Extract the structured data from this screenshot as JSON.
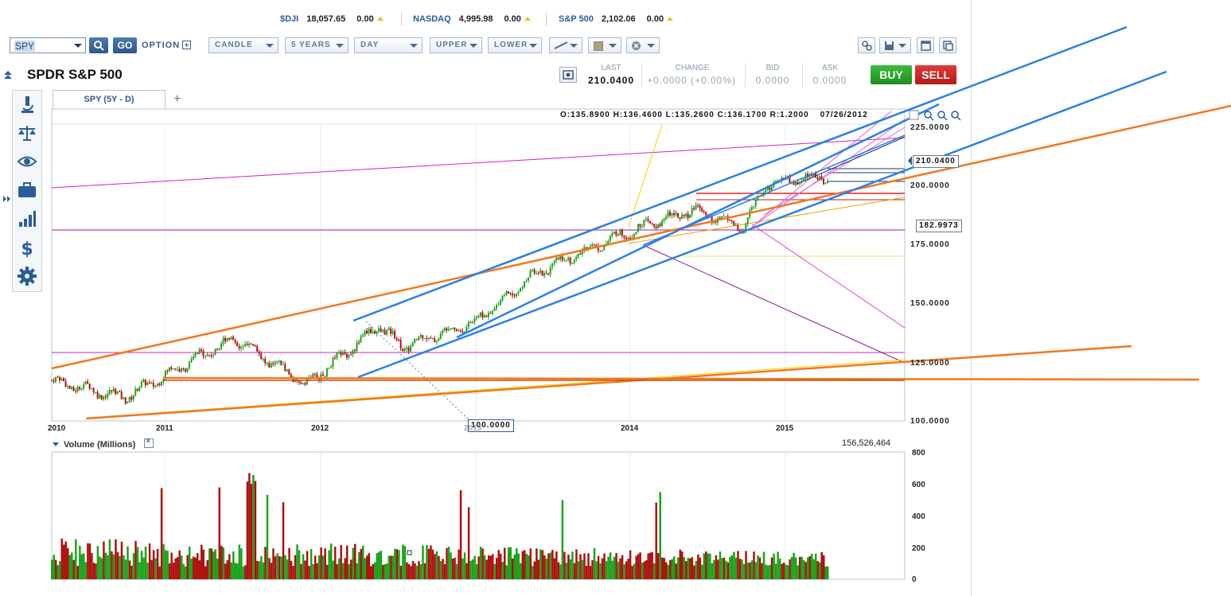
{
  "tickers": [
    {
      "symbol": "$DJI",
      "value": "18,057.65",
      "change": "0.00"
    },
    {
      "symbol": "NASDAQ",
      "value": "4,995.98",
      "change": "0.00"
    },
    {
      "symbol": "S&P 500",
      "value": "2,102.06",
      "change": "0.00"
    }
  ],
  "toolbar": {
    "symbol_value": "SPY",
    "go_label": "GO",
    "option_label": "OPTION",
    "chart_type": "CANDLE",
    "period": "5 YEARS",
    "interval": "DAY",
    "upper": "UPPER",
    "lower": "LOWER"
  },
  "header": {
    "title": "SPDR S&P 500",
    "last_label": "LAST",
    "last_value": "210.0400",
    "change_label": "CHANGE",
    "change_value": "+0.0000 (+0.00%)",
    "bid_label": "BID",
    "bid_value": "0.0000",
    "ask_label": "ASK",
    "ask_value": "0.0000",
    "buy_label": "BUY",
    "sell_label": "SELL"
  },
  "chart": {
    "tab_label": "SPY (5Y - D)",
    "add_tab": "+",
    "ohlc": "O:135.8900  H:136.4600  L:135.2600  C:136.1700  R:1.2000",
    "date_readout": "07/26/2012",
    "y_labels": [
      "225.0000",
      "200.0000",
      "175.0000",
      "150.0000",
      "125.0000",
      "100.0000"
    ],
    "x_labels": [
      "2010",
      "2011",
      "2012",
      "2013",
      "2014",
      "2015"
    ],
    "current_price_tag": "210.0400",
    "crosshair_price_tag": "182.9973",
    "cursor_price_tag": "100.0000",
    "colors": {
      "up": "#1aa31a",
      "down": "#b01010",
      "trend_blue": "#2a7fe8",
      "trend_orange": "#f07820",
      "magenta": "#d020c8"
    }
  },
  "volume": {
    "title": "Volume (Millions)",
    "current": "156,526,464",
    "y_labels": [
      "800",
      "600",
      "400",
      "200",
      "0"
    ]
  },
  "chart_data": {
    "type": "candlestick",
    "symbol": "SPY",
    "x_range": [
      "2010",
      "2015"
    ],
    "ylim": [
      95,
      235
    ],
    "closes_approx": [
      {
        "date": "2010-01",
        "close": 114
      },
      {
        "date": "2010-07",
        "close": 106
      },
      {
        "date": "2011-04",
        "close": 134
      },
      {
        "date": "2011-10",
        "close": 112
      },
      {
        "date": "2012-04",
        "close": 140
      },
      {
        "date": "2012-06",
        "close": 130
      },
      {
        "date": "2012-12",
        "close": 142
      },
      {
        "date": "2013-05",
        "close": 165
      },
      {
        "date": "2013-12",
        "close": 183
      },
      {
        "date": "2014-06",
        "close": 195
      },
      {
        "date": "2014-10",
        "close": 186
      },
      {
        "date": "2014-12",
        "close": 207
      },
      {
        "date": "2015-04",
        "close": 210
      }
    ],
    "volume_ylim": [
      0,
      800
    ]
  }
}
